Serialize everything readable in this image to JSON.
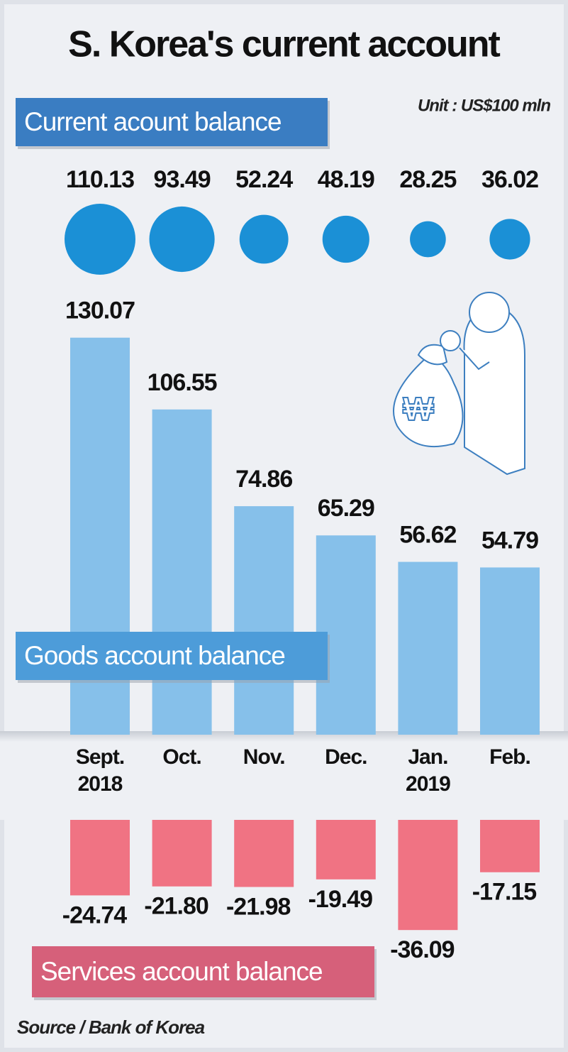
{
  "chart_data": {
    "type": "bar",
    "title": "S. Korea's current account",
    "unit": "Unit : US$100 mln",
    "source": "Source / Bank of Korea",
    "categories": [
      "Sept. 2018",
      "Oct.",
      "Nov.",
      "Dec.",
      "Jan. 2019",
      "Feb."
    ],
    "series": [
      {
        "name": "Current acount balance",
        "type": "bubble",
        "color": "#1b90d6",
        "box_color": "#3a7dc2",
        "values": [
          110.13,
          93.49,
          52.24,
          48.19,
          28.25,
          36.02
        ]
      },
      {
        "name": "Goods account balance",
        "type": "bar",
        "color": "#86c0ea",
        "box_color": "#4d9cd9",
        "values": [
          130.07,
          106.55,
          74.86,
          65.29,
          56.62,
          54.79
        ]
      },
      {
        "name": "Services account balance",
        "type": "bar",
        "color": "#f07383",
        "box_color": "#d6607a",
        "values": [
          -24.74,
          -21.8,
          -21.98,
          -19.49,
          -36.09,
          -17.15
        ],
        "value_labels": [
          "-24.74",
          "-21.80",
          "-21.98",
          "-19.49",
          "-36.09",
          "-17.15"
        ]
      }
    ]
  }
}
